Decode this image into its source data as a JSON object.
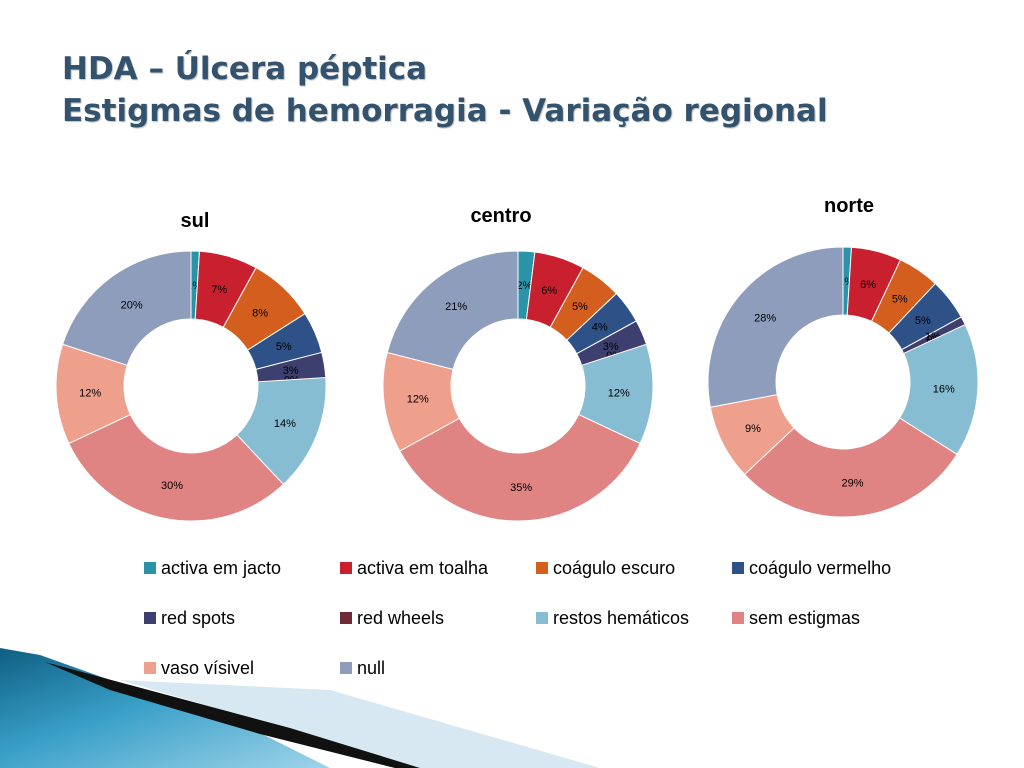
{
  "slide": {
    "title_line1": "HDA – Úlcera péptica",
    "title_line2": "Estigmas de hemorragia - Variação regional"
  },
  "chart_data": [
    {
      "type": "pie",
      "title": "sul",
      "categories": [
        "activa em jacto",
        "activa em toalha",
        "coágulo escuro",
        "coágulo vermelho",
        "red spots",
        "red wheels",
        "restos hemáticos",
        "sem estigmas",
        "vaso vísivel",
        "null"
      ],
      "values": [
        1,
        7,
        8,
        5,
        3,
        0,
        14,
        30,
        12,
        20
      ],
      "labels": [
        "1%",
        "7%",
        "8%",
        "5%",
        "3%",
        "0%",
        "14%",
        "30%",
        "12%",
        "20%"
      ]
    },
    {
      "type": "pie",
      "title": "centro",
      "categories": [
        "activa em jacto",
        "activa em toalha",
        "coágulo escuro",
        "coágulo vermelho",
        "red spots",
        "red wheels",
        "restos hemáticos",
        "sem estigmas",
        "vaso vísivel",
        "null"
      ],
      "values": [
        2,
        6,
        5,
        4,
        3,
        0,
        12,
        35,
        12,
        21
      ],
      "labels": [
        "2%",
        "6%",
        "5%",
        "4%",
        "3%",
        "0%",
        "12%",
        "35%",
        "12%",
        "21%"
      ]
    },
    {
      "type": "pie",
      "title": "norte",
      "categories": [
        "activa em jacto",
        "activa em toalha",
        "coágulo escuro",
        "coágulo vermelho",
        "red spots",
        "red wheels",
        "restos hemáticos",
        "sem estigmas",
        "vaso vísivel",
        "null"
      ],
      "values": [
        1,
        6,
        5,
        5,
        1,
        0,
        16,
        29,
        9,
        28
      ],
      "labels": [
        "1%",
        "6%",
        "5%",
        "5%",
        "1%",
        "0%",
        "16%",
        "29%",
        "9%",
        "28%"
      ]
    }
  ],
  "legend": [
    {
      "label": "activa em jacto",
      "color": "#2a93a8"
    },
    {
      "label": "activa em toalha",
      "color": "#c8202e"
    },
    {
      "label": "coágulo escuro",
      "color": "#d35e1e"
    },
    {
      "label": "coágulo vermelho",
      "color": "#2e5188"
    },
    {
      "label": "red spots",
      "color": "#3d3f6e"
    },
    {
      "label": "red wheels",
      "color": "#6e2b37"
    },
    {
      "label": "restos hemáticos",
      "color": "#86bdd3"
    },
    {
      "label": "sem estigmas",
      "color": "#e08383"
    },
    {
      "label": "vaso vísivel",
      "color": "#eea08c"
    },
    {
      "label": "null",
      "color": "#8f9dbc"
    }
  ]
}
